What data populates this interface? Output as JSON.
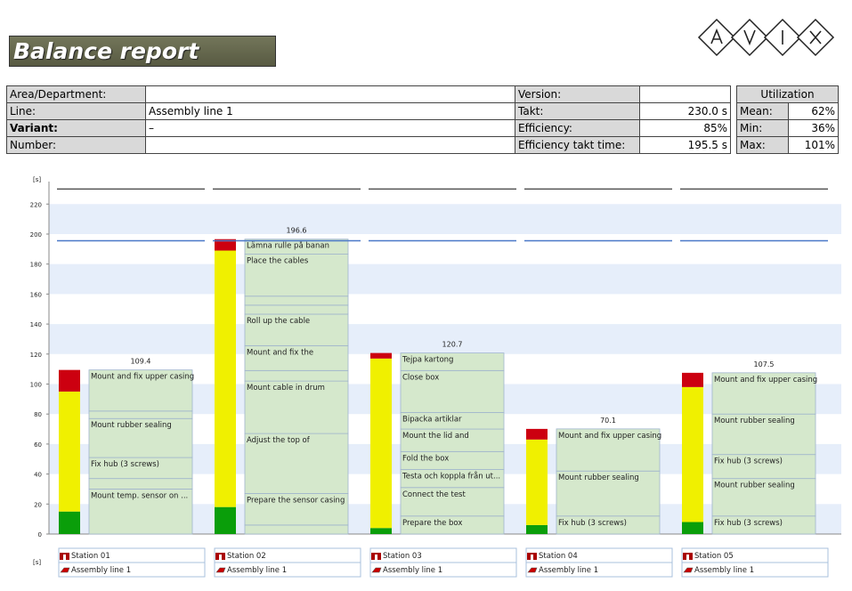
{
  "header": {
    "title": "Balance report"
  },
  "info": {
    "left": [
      {
        "label": "Area/Department:"
      },
      {
        "label": "Line:",
        "value": "Assembly line 1"
      },
      {
        "label": "Variant:",
        "value": "–"
      },
      {
        "label": "Number:"
      }
    ],
    "middle": [
      {
        "label": "Version:"
      },
      {
        "label": "Takt:",
        "value": "230.0 s"
      },
      {
        "label": "Efficiency:",
        "value": "85%"
      },
      {
        "label": "Efficiency takt time:",
        "value": "195.5 s"
      }
    ],
    "utilization": {
      "title": "Utilization",
      "rows": [
        {
          "label": "Mean:",
          "value": "62%"
        },
        {
          "label": "Min:",
          "value": "36%"
        },
        {
          "label": "Max:",
          "value": "101%"
        }
      ]
    }
  },
  "chart_data": {
    "type": "balance",
    "y_label": "[s]",
    "ylim": [
      0,
      235
    ],
    "yticks": [
      0,
      20,
      40,
      60,
      80,
      100,
      120,
      140,
      160,
      180,
      200,
      220
    ],
    "takt": 230,
    "takt_color": "#555555",
    "efficiency_takt": 195.5,
    "efficiency_color": "#4a78c8",
    "bar_colors": [
      "#0a9e0a",
      "#f0f000",
      "#cc0010"
    ],
    "task_color": "#d5e8cc",
    "stations": [
      {
        "name": "Station 01",
        "line": "Assembly line 1",
        "bar_values": [
          15,
          80,
          14.4
        ],
        "total": 109.4,
        "tasks": [
          {
            "label": "Mount temp. sensor on ...",
            "value": 30
          },
          {
            "label": null,
            "value": 7
          },
          {
            "label": "Fix hub (3 screws)",
            "value": 14
          },
          {
            "label": "Mount rubber sealing",
            "value": 26
          },
          {
            "label": null,
            "value": 5
          },
          {
            "label": "Mount and fix upper casing",
            "value": 27.4
          }
        ]
      },
      {
        "name": "Station 02",
        "line": "Assembly line 1",
        "bar_values": [
          18,
          171,
          7.6
        ],
        "total": 196.6,
        "tasks": [
          {
            "label": null,
            "value": 6
          },
          {
            "label": "Prepare the sensor casing",
            "value": 21
          },
          {
            "label": "Adjust the top of",
            "value": 40
          },
          {
            "label": "Mount cable in drum",
            "value": 35
          },
          {
            "label": null,
            "value": 7
          },
          {
            "label": "Mount and fix the",
            "value": 16.6
          },
          {
            "label": "Roll up the cable",
            "value": 21
          },
          {
            "label": null,
            "value": 6
          },
          {
            "label": null,
            "value": 6
          },
          {
            "label": "Place the cables",
            "value": 28
          },
          {
            "label": "Lämna rulle på banan",
            "value": 10
          }
        ]
      },
      {
        "name": "Station 03",
        "line": "Assembly line 1",
        "bar_values": [
          4,
          113,
          3.7
        ],
        "total": 120.7,
        "tasks": [
          {
            "label": "Prepare the box",
            "value": 12
          },
          {
            "label": "Connect the test",
            "value": 19
          },
          {
            "label": "Testa och koppla från ut...",
            "value": 12
          },
          {
            "label": "Fold the box",
            "value": 12
          },
          {
            "label": "Mount the lid and",
            "value": 15
          },
          {
            "label": "Bipacka artiklar",
            "value": 11
          },
          {
            "label": "Close box",
            "value": 28
          },
          {
            "label": "Tejpa kartong",
            "value": 11.7
          }
        ]
      },
      {
        "name": "Station 04",
        "line": "Assembly line 1",
        "bar_values": [
          6,
          57,
          7.1
        ],
        "total": 70.1,
        "tasks": [
          {
            "label": "Fix hub (3 screws)",
            "value": 12
          },
          {
            "label": "Mount rubber sealing",
            "value": 30
          },
          {
            "label": "Mount and fix upper casing",
            "value": 28.1
          }
        ]
      },
      {
        "name": "Station 05",
        "line": "Assembly line 1",
        "bar_values": [
          8,
          90,
          9.5
        ],
        "total": 107.5,
        "tasks": [
          {
            "label": "Fix hub (3 screws)",
            "value": 12
          },
          {
            "label": "Mount rubber sealing",
            "value": 25
          },
          {
            "label": "Fix hub (3 screws)",
            "value": 16
          },
          {
            "label": "Mount rubber sealing",
            "value": 27
          },
          {
            "label": "Mount and fix upper casing",
            "value": 27.5
          }
        ]
      }
    ]
  }
}
